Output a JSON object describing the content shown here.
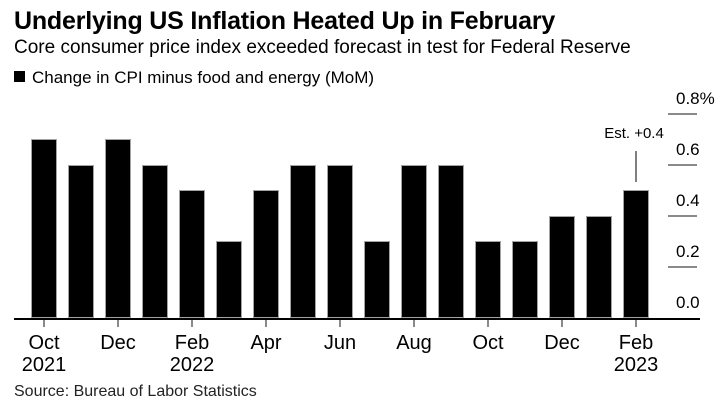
{
  "header": {
    "title": "Underlying US Inflation Heated Up in February",
    "subtitle": "Core consumer price index exceeded forecast in test for Federal Reserve"
  },
  "legend": {
    "label": "Change in CPI minus food and energy (MoM)",
    "swatch_color": "#000000"
  },
  "source": "Source: Bureau of Labor Statistics",
  "colors": {
    "bar": "#000000",
    "axis": "#000000",
    "tick": "#8a8a8a",
    "annotation_line": "#808080",
    "background": "#ffffff"
  },
  "chart_data": {
    "type": "bar",
    "title": "Underlying US Inflation Heated Up in February",
    "subtitle": "Core consumer price index exceeded forecast in test for Federal Reserve",
    "series_name": "Change in CPI minus food and energy (MoM)",
    "categories": [
      "Oct 2021",
      "Nov 2021",
      "Dec 2021",
      "Jan 2022",
      "Feb 2022",
      "Mar 2022",
      "Apr 2022",
      "May 2022",
      "Jun 2022",
      "Jul 2022",
      "Aug 2022",
      "Sep 2022",
      "Oct 2022",
      "Nov 2022",
      "Dec 2022",
      "Jan 2023",
      "Feb 2023"
    ],
    "values": [
      0.7,
      0.6,
      0.7,
      0.6,
      0.5,
      0.3,
      0.5,
      0.6,
      0.6,
      0.3,
      0.6,
      0.6,
      0.3,
      0.3,
      0.4,
      0.4,
      0.5
    ],
    "unit": "%",
    "ylim": [
      0,
      0.8
    ],
    "y_ticks": [
      {
        "value": 0.8,
        "label": "0.8%"
      },
      {
        "value": 0.6,
        "label": "0.6"
      },
      {
        "value": 0.4,
        "label": "0.4"
      },
      {
        "value": 0.2,
        "label": "0.2"
      },
      {
        "value": 0.0,
        "label": "0.0"
      }
    ],
    "x_ticks": [
      {
        "index": 0,
        "label": "Oct",
        "sublabel": "2021"
      },
      {
        "index": 2,
        "label": "Dec",
        "sublabel": ""
      },
      {
        "index": 4,
        "label": "Feb",
        "sublabel": "2022"
      },
      {
        "index": 6,
        "label": "Apr",
        "sublabel": ""
      },
      {
        "index": 8,
        "label": "Jun",
        "sublabel": ""
      },
      {
        "index": 10,
        "label": "Aug",
        "sublabel": ""
      },
      {
        "index": 12,
        "label": "Oct",
        "sublabel": ""
      },
      {
        "index": 14,
        "label": "Dec",
        "sublabel": ""
      },
      {
        "index": 16,
        "label": "Feb",
        "sublabel": "2023"
      }
    ],
    "annotation": {
      "text": "Est. +0.4",
      "target_category": "Feb 2023",
      "target_index": 16
    },
    "legend_position": "top-left",
    "grid": false,
    "bar_color": "#000000"
  }
}
